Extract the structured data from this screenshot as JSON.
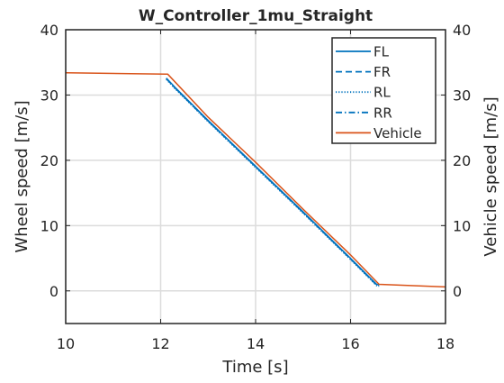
{
  "chart_data": {
    "type": "line",
    "title": "W_Controller_1mu_Straight",
    "xlabel": "Time [s]",
    "ylabel_left": "Wheel speed [m/s]",
    "ylabel_right": "Vehicle speed [m/s]",
    "xlim": [
      10,
      18
    ],
    "ylim": [
      -5,
      40
    ],
    "x_ticks": [
      "10",
      "12",
      "14",
      "16",
      "18"
    ],
    "y_ticks": [
      "0",
      "10",
      "20",
      "30",
      "40"
    ],
    "grid": true,
    "legend_position": "top-right",
    "series": [
      {
        "name": "FL",
        "color": "#0072BD",
        "dash": "solid",
        "x": [
          12.12,
          12.3,
          13,
          14,
          15,
          16,
          16.55,
          16.6
        ],
        "y": [
          32.6,
          31.2,
          26.1,
          19.1,
          12.1,
          5.0,
          1.0,
          0.9
        ]
      },
      {
        "name": "FR",
        "color": "#0072BD",
        "dash": "dashed",
        "x": [
          12.12,
          12.3,
          13,
          14,
          15,
          16,
          16.55,
          16.6
        ],
        "y": [
          32.5,
          31.1,
          26.0,
          19.0,
          12.0,
          4.9,
          0.9,
          0.8
        ]
      },
      {
        "name": "RL",
        "color": "#0072BD",
        "dash": "dotted",
        "x": [
          12.12,
          12.3,
          13,
          14,
          15,
          16,
          16.55,
          16.6
        ],
        "y": [
          32.4,
          31.0,
          25.9,
          18.9,
          11.9,
          4.8,
          0.8,
          0.7
        ]
      },
      {
        "name": "RR",
        "color": "#0072BD",
        "dash": "dashdot",
        "x": [
          12.12,
          12.3,
          13,
          14,
          15,
          16,
          16.55,
          16.6
        ],
        "y": [
          32.5,
          31.1,
          26.0,
          19.0,
          12.0,
          4.9,
          0.9,
          0.8
        ]
      },
      {
        "name": "Vehicle",
        "color": "#D95319",
        "dash": "solid",
        "x": [
          10,
          12.1,
          12.15,
          13,
          14,
          15,
          16,
          16.6,
          18
        ],
        "y": [
          33.4,
          33.2,
          33.2,
          26.6,
          19.7,
          12.5,
          5.5,
          1.0,
          0.6
        ]
      }
    ]
  }
}
